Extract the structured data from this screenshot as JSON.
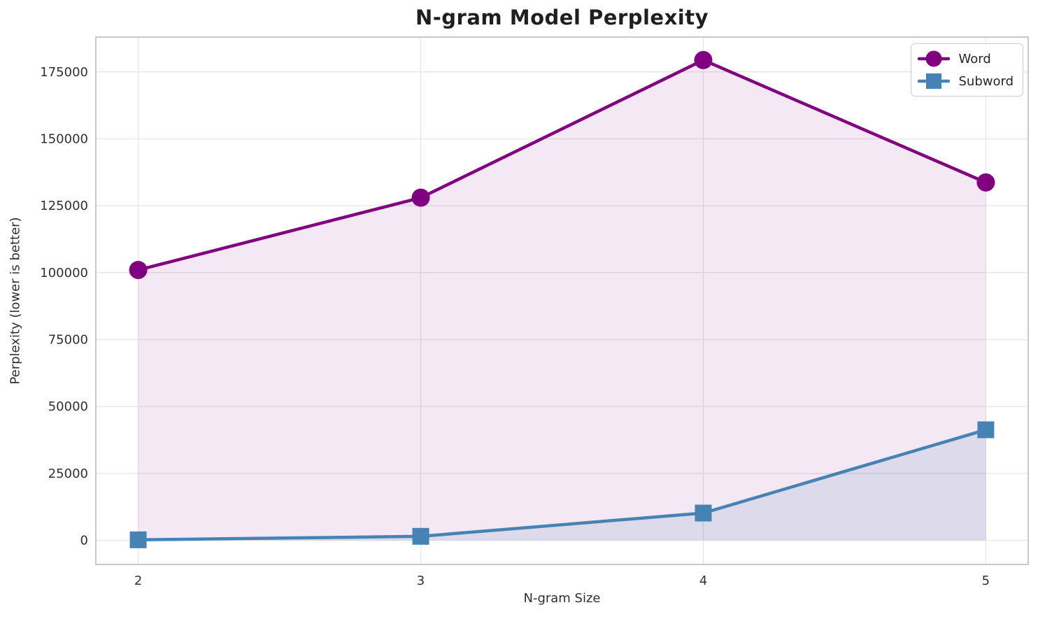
{
  "chart_data": {
    "type": "line",
    "title": "N-gram Model Perplexity",
    "xlabel": "N-gram Size",
    "ylabel": "Perplexity (lower is better)",
    "x": [
      2,
      3,
      4,
      5
    ],
    "series": [
      {
        "name": "Word",
        "marker": "circle",
        "color": "#800080",
        "fill_color": "rgba(128,0,128,0.09)",
        "values": [
          101000,
          128000,
          179400,
          133700
        ]
      },
      {
        "name": "Subword",
        "marker": "square",
        "color": "#4682B4",
        "fill_color": "rgba(70,130,180,0.13)",
        "values": [
          200,
          1500,
          10200,
          41300
        ]
      }
    ],
    "xticks": [
      2,
      3,
      4,
      5
    ],
    "yticks": [
      0,
      25000,
      50000,
      75000,
      100000,
      125000,
      150000,
      175000
    ],
    "xlim": [
      1.85,
      5.15
    ],
    "ylim": [
      -9000,
      188000
    ],
    "grid": true,
    "area_fill": true,
    "fill_baseline": 0,
    "legend_position": "upper right"
  },
  "style": {
    "grid_color": "#e7e7e7",
    "spine_color": "#c9c9c9",
    "tick_text_color": "#303030",
    "title_color": "#1f1f1f",
    "background": "#ffffff",
    "line_width": 4.5,
    "marker_radius": 13,
    "square_half": 12
  }
}
